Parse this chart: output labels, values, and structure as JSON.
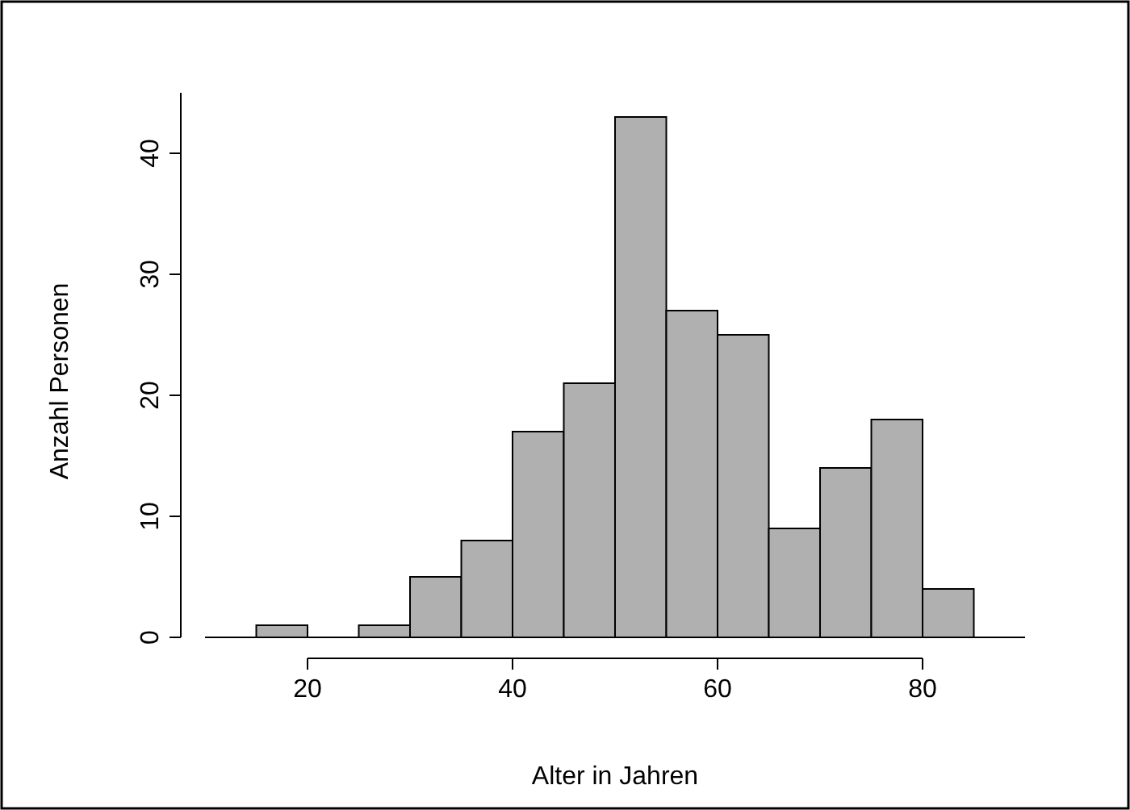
{
  "chart_data": {
    "type": "histogram",
    "xlabel": "Alter in Jahren",
    "ylabel": "Anzahl Personen",
    "bins": [
      15,
      20,
      25,
      30,
      35,
      40,
      45,
      50,
      55,
      60,
      65,
      70,
      75,
      80,
      85
    ],
    "values": [
      1,
      0,
      1,
      5,
      8,
      17,
      21,
      43,
      27,
      25,
      9,
      14,
      18,
      4
    ],
    "color": "#b0b0b0",
    "xlim": [
      10,
      90
    ],
    "xticks": [
      20,
      40,
      60,
      80
    ],
    "ylim": [
      0,
      45
    ],
    "yticks": [
      0,
      10,
      20,
      30,
      40
    ],
    "ref_lines": [
      {
        "axis": "y",
        "value": 0,
        "color": "#000000"
      }
    ],
    "grid": false
  }
}
